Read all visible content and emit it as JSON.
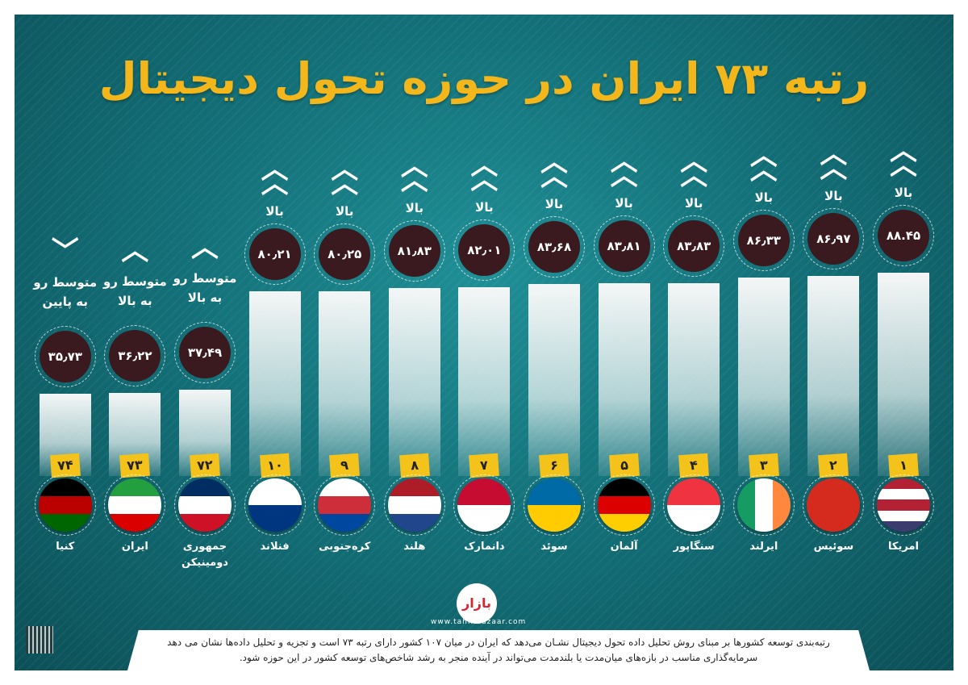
{
  "title": "رتبه ۷۳ ایران در حوزه تحول دیجیتال",
  "chart_data": {
    "type": "bar",
    "title": "رتبه ۷۳ ایران در حوزه تحول دیجیتال",
    "categories": [
      "امریکا",
      "سوئیس",
      "ایرلند",
      "سنگاپور",
      "آلمان",
      "سوئد",
      "دانمارک",
      "هلند",
      "کره‌جنوبی",
      "فنلاند",
      "جمهوری دومینیکن",
      "ایران",
      "کنیا"
    ],
    "values": [
      88.45,
      86.97,
      86.33,
      83.83,
      83.81,
      83.68,
      82.01,
      81.83,
      80.25,
      80.21,
      37.49,
      36.22,
      35.73
    ],
    "value_labels": [
      "۸۸.۴۵",
      "۸۶٫۹۷",
      "۸۶٫۳۳",
      "۸۳٫۸۳",
      "۸۳٫۸۱",
      "۸۳٫۶۸",
      "۸۲٫۰۱",
      "۸۱٫۸۳",
      "۸۰٫۲۵",
      "۸۰٫۲۱",
      "۳۷٫۴۹",
      "۳۶٫۲۲",
      "۳۵٫۷۳"
    ],
    "ranks": [
      "۱",
      "۲",
      "۳",
      "۴",
      "۵",
      "۶",
      "۷",
      "۸",
      "۹",
      "۱۰",
      "۷۲",
      "۷۳",
      "۷۴"
    ],
    "trends": [
      "بالا",
      "بالا",
      "بالا",
      "بالا",
      "بالا",
      "بالا",
      "بالا",
      "بالا",
      "بالا",
      "بالا",
      "متوسط رو به بالا",
      "متوسط رو به بالا",
      "متوسط رو به پایین"
    ],
    "trend_icons": [
      "double-chevron-up",
      "double-chevron-up",
      "double-chevron-up",
      "double-chevron-up",
      "double-chevron-up",
      "double-chevron-up",
      "double-chevron-up",
      "double-chevron-up",
      "double-chevron-up",
      "double-chevron-up",
      "chevron-up",
      "chevron-up",
      "chevron-down"
    ],
    "flags": [
      [
        "#b22234",
        "#fff",
        "#b22234",
        "#fff",
        "#3c3b6e"
      ],
      [
        "#d52b1e"
      ],
      [
        "#169b62",
        "#fff",
        "#ff883e"
      ],
      [
        "#ef3340",
        "#fff"
      ],
      [
        "#000",
        "#dd0000",
        "#ffce00"
      ],
      [
        "#006aa7",
        "#fecc00"
      ],
      [
        "#c60c30",
        "#fff"
      ],
      [
        "#ae1c28",
        "#fff",
        "#21468b"
      ],
      [
        "#fff",
        "#cd2e3a",
        "#0047a0"
      ],
      [
        "#fff",
        "#003580"
      ],
      [
        "#002d62",
        "#fff",
        "#ce1126"
      ],
      [
        "#239f40",
        "#fff",
        "#da0000"
      ],
      [
        "#000",
        "#bb0000",
        "#006600"
      ]
    ],
    "flag_style": [
      "v",
      "v",
      "h",
      "v",
      "v",
      "v",
      "v",
      "v",
      "v",
      "v",
      "v",
      "v",
      "v"
    ],
    "ylim": [
      0,
      100
    ]
  },
  "branding": {
    "logo": "بازار",
    "site": "www.tahlilbazaar.com"
  },
  "caption": [
    "رتبه‌بندی توسعه کشورها بر مبنای روش تحلیل داده تحول دیجیتال نشـان می‌دهد که ایران در میان ۱۰۷ کشور دارای رتبه ۷۳ است و تجزیه و تحلیل داده‌ها نشان می دهد",
    "سرمایه‌گذاری مناسب در بازه‌های میان‌مدت یا بلندمدت می‌تواند در آینده منجر به رشد شاخص‌های توسعه کشور در این حوزه شود."
  ]
}
